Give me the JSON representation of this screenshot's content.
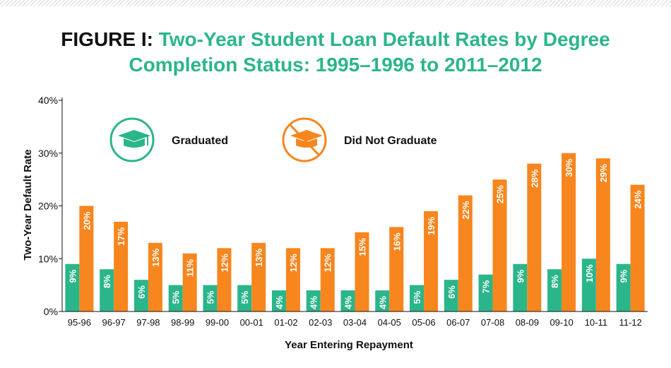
{
  "title": {
    "prefix": "FIGURE I:",
    "line1": "Two-Year Student Loan Default Rates by Degree",
    "line2": "Completion Status: 1995–1996 to 2011–2012"
  },
  "colors": {
    "graduated": "#2bb58a",
    "not_graduated": "#f7861e",
    "title_accent": "#2bb58a",
    "axis": "#111111"
  },
  "legend": [
    {
      "label": "Graduated",
      "icon": "graduation-cap-icon"
    },
    {
      "label": "Did Not Graduate",
      "icon": "graduation-cap-prohibited-icon"
    }
  ],
  "chart_data": {
    "type": "bar",
    "categories": [
      "95-96",
      "96-97",
      "97-98",
      "98-99",
      "99-00",
      "00-01",
      "01-02",
      "02-03",
      "03-04",
      "04-05",
      "05-06",
      "06-07",
      "07-08",
      "08-09",
      "09-10",
      "10-11",
      "11-12"
    ],
    "series": [
      {
        "name": "Graduated",
        "values": [
          9,
          8,
          6,
          5,
          5,
          5,
          4,
          4,
          4,
          4,
          5,
          6,
          7,
          9,
          8,
          10,
          9
        ]
      },
      {
        "name": "Did Not Graduate",
        "values": [
          20,
          17,
          13,
          11,
          12,
          13,
          12,
          12,
          15,
          16,
          19,
          22,
          25,
          28,
          30,
          29,
          24
        ]
      }
    ],
    "xlabel": "Year Entering Repayment",
    "ylabel": "Two-Year Default Rate",
    "ylim": [
      0,
      40
    ],
    "yticks": [
      "0%",
      "10%",
      "20%",
      "30%",
      "40%"
    ],
    "value_suffix": "%",
    "grid": false,
    "legend_position": "top-left"
  }
}
